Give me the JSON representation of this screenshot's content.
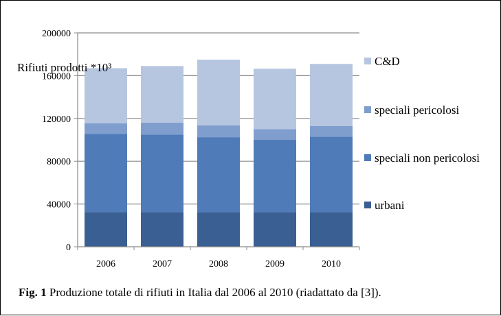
{
  "chart_data": {
    "type": "bar",
    "stacked": true,
    "categories": [
      "2006",
      "2007",
      "2008",
      "2009",
      "2010"
    ],
    "series": [
      {
        "name": "urbani",
        "color": "#3A5F93",
        "values": [
          32500,
          32500,
          32500,
          32500,
          32500
        ]
      },
      {
        "name": "speciali non pericolosi",
        "color": "#4F7BB8",
        "values": [
          73000,
          72500,
          70000,
          67500,
          70500
        ]
      },
      {
        "name": "speciali pericolosi",
        "color": "#7F9ECE",
        "values": [
          10000,
          11000,
          11000,
          10000,
          10000
        ]
      },
      {
        "name": "C&D",
        "color": "#B6C6E0",
        "values": [
          51500,
          53000,
          61500,
          56500,
          58000
        ]
      }
    ],
    "ylim": [
      0,
      200000
    ],
    "yticks": [
      "0",
      "40000",
      "80000",
      "120000",
      "160000",
      "200000"
    ],
    "ylabel": "Rifiuti prodotti *10³",
    "grid": true,
    "legend_position": "right"
  },
  "caption": {
    "label": "Fig. 1",
    "text": " Produzione totale di rifiuti in Italia dal 2006 al 2010 (riadattato da [3])."
  }
}
